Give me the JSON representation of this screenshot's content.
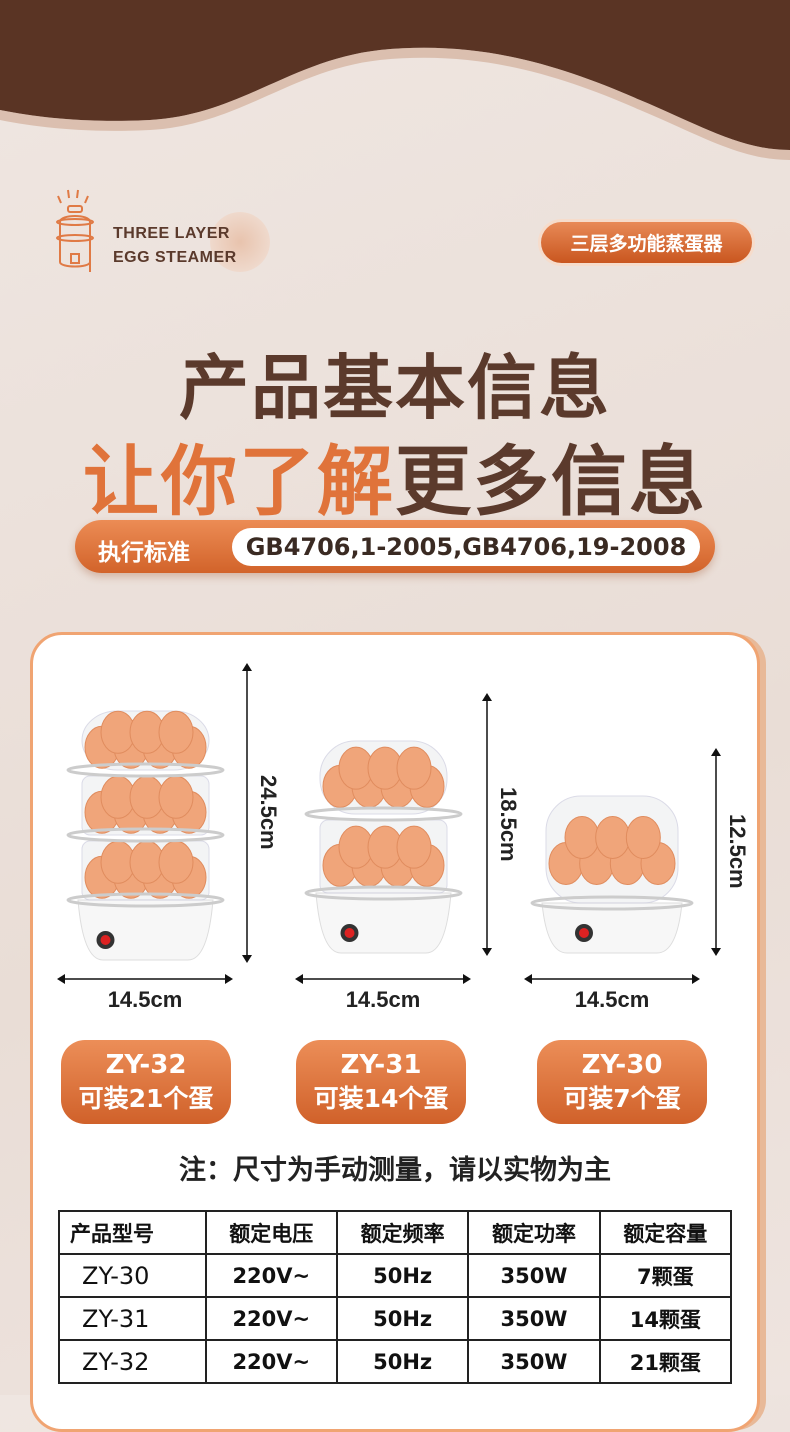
{
  "brand": {
    "line1": "THREE LAYER",
    "line2": "EGG STEAMER",
    "tag": "三层多功能蒸蛋器"
  },
  "headline": {
    "line1": "产品基本信息",
    "line2_accent": "让你了解",
    "line2_rest": "更多信息"
  },
  "standard": {
    "label": "执行标准",
    "value": "GB4706,1-2005,GB4706,19-2008"
  },
  "colors": {
    "accent": "#e0733a",
    "brown": "#5b3a2c",
    "background": "#ede3dd"
  },
  "products": [
    {
      "model": "ZY-32",
      "capacity": "可装21个蛋",
      "height": "24.5cm",
      "width": "14.5cm",
      "layers": 3
    },
    {
      "model": "ZY-31",
      "capacity": "可装14个蛋",
      "height": "18.5cm",
      "width": "14.5cm",
      "layers": 2
    },
    {
      "model": "ZY-30",
      "capacity": "可装7个蛋",
      "height": "12.5cm",
      "width": "14.5cm",
      "layers": 1
    }
  ],
  "note": "注：尺寸为手动测量，请以实物为主",
  "table": {
    "headers": [
      "产品型号",
      "额定电压",
      "额定频率",
      "额定功率",
      "额定容量"
    ],
    "rows": [
      [
        "ZY-30",
        "220V~",
        "50Hz",
        "350W",
        "7颗蛋"
      ],
      [
        "ZY-31",
        "220V~",
        "50Hz",
        "350W",
        "14颗蛋"
      ],
      [
        "ZY-32",
        "220V~",
        "50Hz",
        "350W",
        "21颗蛋"
      ]
    ]
  }
}
